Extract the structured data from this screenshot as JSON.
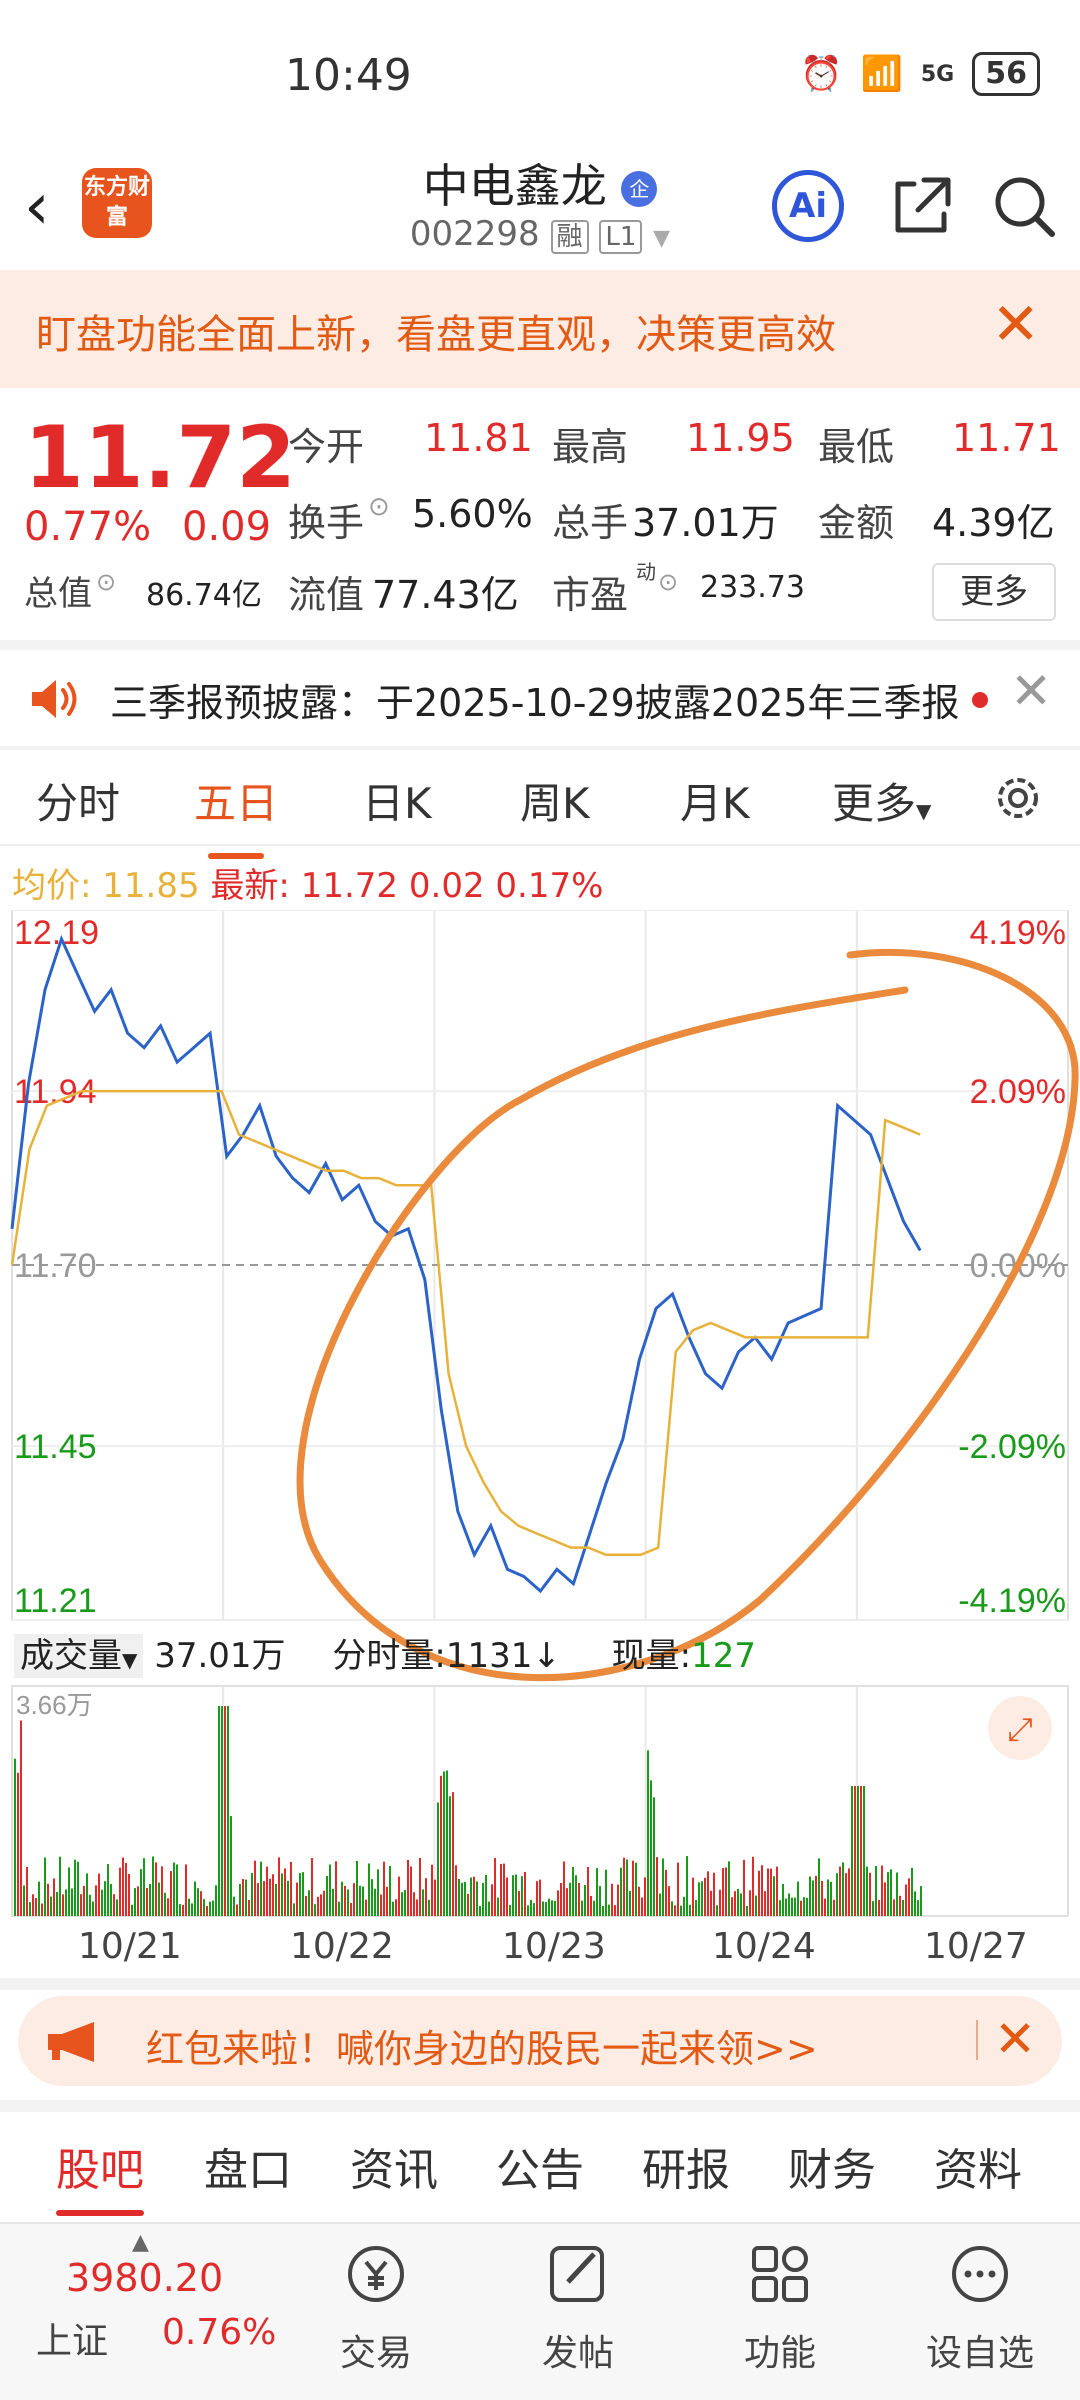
{
  "status": {
    "time": "10:49",
    "network": "5G",
    "battery": "56"
  },
  "header": {
    "logo_text": "东方财富",
    "stock_name": "中电鑫龙",
    "badge": "企",
    "code": "002298",
    "tag1": "融",
    "tag2": "L1",
    "ai_label": "Ai"
  },
  "promo": {
    "text": "盯盘功能全面上新，看盘更直观，决策更高效"
  },
  "quote": {
    "price": "11.72",
    "pct": "0.77%",
    "change": "0.09",
    "open_label": "今开",
    "open": "11.81",
    "high_label": "最高",
    "high": "11.95",
    "low_label": "最低",
    "low": "11.71",
    "turnover_label": "换手",
    "turnover": "5.60%",
    "volume_label": "总手",
    "volume": "37.01万",
    "amount_label": "金额",
    "amount": "4.39亿",
    "mktcap_label": "总值",
    "mktcap": "86.74亿",
    "float_label": "流值",
    "float": "77.43亿",
    "pe_label": "市盈",
    "pe_sup": "动",
    "pe": "233.73",
    "more": "更多"
  },
  "notice": {
    "text": "三季报预披露：于2025-10-29披露2025年三季报"
  },
  "tabs": [
    "分时",
    "五日",
    "日K",
    "周K",
    "月K",
    "更多"
  ],
  "active_tab": "五日",
  "legend": {
    "avg_label": "均价:",
    "avg": "11.85",
    "last_label": "最新:",
    "last": "11.72",
    "chg": "0.02",
    "pct": "0.17%"
  },
  "chart_data": {
    "type": "line",
    "title": "",
    "days": [
      "10/21",
      "10/22",
      "10/23",
      "10/24",
      "10/27"
    ],
    "y_ticks_left": [
      "12.19",
      "11.94",
      "11.70",
      "11.45",
      "11.21"
    ],
    "y_ticks_right": [
      "4.19%",
      "2.09%",
      "0.00%",
      "-2.09%",
      "-4.19%"
    ],
    "ylim": [
      11.21,
      12.19
    ],
    "prev_close": 11.7,
    "series": [
      {
        "name": "",
        "values": [
          11.75,
          11.95,
          12.08,
          12.15,
          12.1,
          12.05,
          12.08,
          12.02,
          12.0,
          12.03,
          11.98,
          12.0,
          12.02,
          11.85,
          11.88,
          11.92,
          11.85,
          11.82,
          11.8,
          11.84,
          11.79,
          11.81,
          11.76,
          11.74,
          11.75,
          11.68,
          11.5,
          11.36,
          11.3,
          11.34,
          11.28,
          11.27,
          11.25,
          11.28,
          11.26,
          11.33,
          11.4,
          11.46,
          11.57,
          11.64,
          11.66,
          11.6,
          11.55,
          11.53,
          11.58,
          11.6,
          11.57,
          11.62,
          11.63,
          11.64,
          11.92,
          11.9,
          11.88,
          11.82,
          11.76,
          11.72
        ]
      },
      {
        "name": "",
        "values": [
          11.7,
          11.86,
          11.92,
          11.93,
          11.94,
          11.94,
          11.94,
          11.94,
          11.94,
          11.94,
          11.94,
          11.94,
          11.94,
          11.88,
          11.87,
          11.86,
          11.85,
          11.84,
          11.83,
          11.83,
          11.82,
          11.82,
          11.81,
          11.81,
          11.81,
          11.55,
          11.45,
          11.4,
          11.36,
          11.34,
          11.33,
          11.32,
          11.31,
          11.31,
          11.3,
          11.3,
          11.3,
          11.31,
          11.58,
          11.61,
          11.62,
          11.61,
          11.6,
          11.6,
          11.6,
          11.6,
          11.6,
          11.6,
          11.6,
          11.6,
          11.9,
          11.89,
          11.88
        ]
      }
    ]
  },
  "volume": {
    "label": "成交量",
    "total": "37.01万",
    "fs_label": "分时量:",
    "fs": "1131",
    "now_label": "现量:",
    "now": "127",
    "max": "3.66万"
  },
  "red_packet": {
    "text": "红包来啦！喊你身边的股民一起来领>>"
  },
  "bottom_tabs": [
    "股吧",
    "盘口",
    "资讯",
    "公告",
    "研报",
    "财务",
    "资料"
  ],
  "index": {
    "value": "3980.20",
    "name": "上证",
    "pct": "0.76%"
  },
  "bottom_nav": [
    "交易",
    "发帖",
    "功能",
    "设自选"
  ],
  "colors": {
    "up": "#e12b2b",
    "down": "#1a9a1a",
    "price_line": "#2b63c8",
    "avg_line": "#e8b23a",
    "accent": "#e8541e"
  }
}
